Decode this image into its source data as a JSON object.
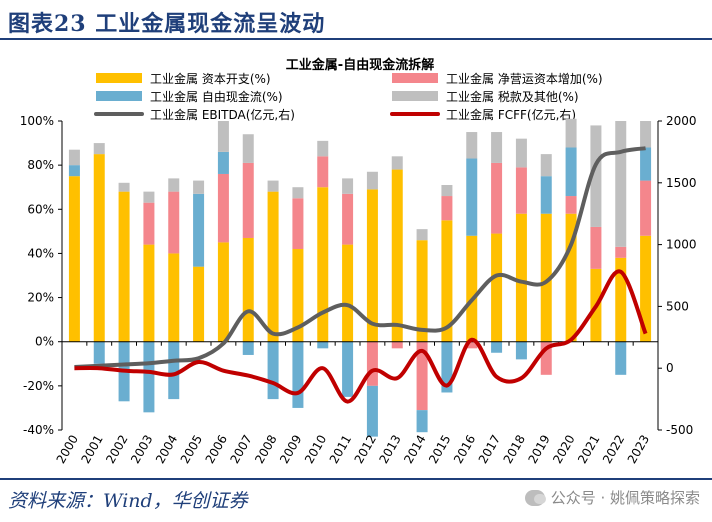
{
  "header": {
    "title": "图表23  工业金属现金流呈波动"
  },
  "footer": {
    "source": "资料来源：Wind，华创证券",
    "watermark": "公众号 · 姚佩策略探索"
  },
  "chart_data": {
    "type": "bar",
    "title": "工业金属-自由现金流拆解",
    "categories": [
      "2000",
      "2001",
      "2002",
      "2003",
      "2004",
      "2005",
      "2006",
      "2007",
      "2008",
      "2009",
      "2010",
      "2011",
      "2012",
      "2013",
      "2014",
      "2015",
      "2016",
      "2017",
      "2018",
      "2019",
      "2020",
      "2021",
      "2022",
      "2023"
    ],
    "left_axis": {
      "ylim": [
        -40,
        100
      ],
      "ticks": [
        "100%",
        "80%",
        "60%",
        "40%",
        "20%",
        "0%",
        "-20%",
        "-40%"
      ]
    },
    "right_axis": {
      "ylim": [
        -500,
        2000
      ],
      "ticks": [
        "2000",
        "1500",
        "1000",
        "500",
        "0",
        "-500"
      ]
    },
    "legend": [
      {
        "label": "工业金属 资本开支(%)",
        "type": "bar",
        "color": "#ffc000"
      },
      {
        "label": "工业金属 净营运资本增加(%)",
        "type": "bar",
        "color": "#f4868c"
      },
      {
        "label": "工业金属 自由现金流(%)",
        "type": "bar",
        "color": "#6aaed0"
      },
      {
        "label": "工业金属 税款及其他(%)",
        "type": "bar",
        "color": "#bfbfbf"
      },
      {
        "label": "工业金属 EBITDA(亿元,右)",
        "type": "line",
        "color": "#5e5e5e"
      },
      {
        "label": "工业金属 FCFF(亿元,右)",
        "type": "line",
        "color": "#c00000"
      }
    ],
    "series": [
      {
        "name": "工业金属 资本开支(%)",
        "axis": "left",
        "values": [
          75,
          85,
          68,
          44,
          40,
          34,
          45,
          47,
          68,
          42,
          70,
          44,
          69,
          78,
          46,
          55,
          48,
          49,
          58,
          58,
          58,
          33,
          38,
          48
        ]
      },
      {
        "name": "工业金属 净营运资本增加(%)",
        "axis": "left",
        "values": [
          0,
          0,
          0,
          19,
          28,
          0,
          31,
          34,
          0,
          23,
          14,
          23,
          -20,
          -3,
          -31,
          11,
          -3,
          32,
          21,
          -15,
          8,
          19,
          5,
          25
        ]
      },
      {
        "name": "工业金属 自由现金流(%)",
        "axis": "left",
        "values": [
          5,
          -10,
          -27,
          -32,
          -26,
          33,
          10,
          -6,
          -26,
          -30,
          -3,
          -25,
          -23,
          0,
          -10,
          -23,
          35,
          -5,
          -8,
          17,
          22,
          0,
          -15,
          15
        ]
      },
      {
        "name": "工业金属 税款及其他(%)",
        "axis": "left",
        "values": [
          7,
          5,
          4,
          5,
          6,
          6,
          14,
          13,
          5,
          5,
          7,
          7,
          8,
          6,
          5,
          5,
          12,
          14,
          13,
          10,
          13,
          46,
          57,
          12
        ]
      },
      {
        "name": "工业金属 EBITDA(亿元,右)",
        "axis": "right",
        "values": [
          10,
          20,
          30,
          40,
          60,
          80,
          200,
          460,
          280,
          330,
          450,
          510,
          360,
          350,
          310,
          330,
          550,
          750,
          700,
          700,
          1000,
          1650,
          1750,
          1780
        ]
      },
      {
        "name": "工业金属 FCFF(亿元,右)",
        "axis": "right",
        "values": [
          0,
          0,
          -20,
          -30,
          -50,
          50,
          -20,
          -60,
          -120,
          -200,
          0,
          -270,
          -20,
          -80,
          140,
          -140,
          230,
          -70,
          -80,
          160,
          230,
          500,
          780,
          280
        ]
      }
    ]
  }
}
